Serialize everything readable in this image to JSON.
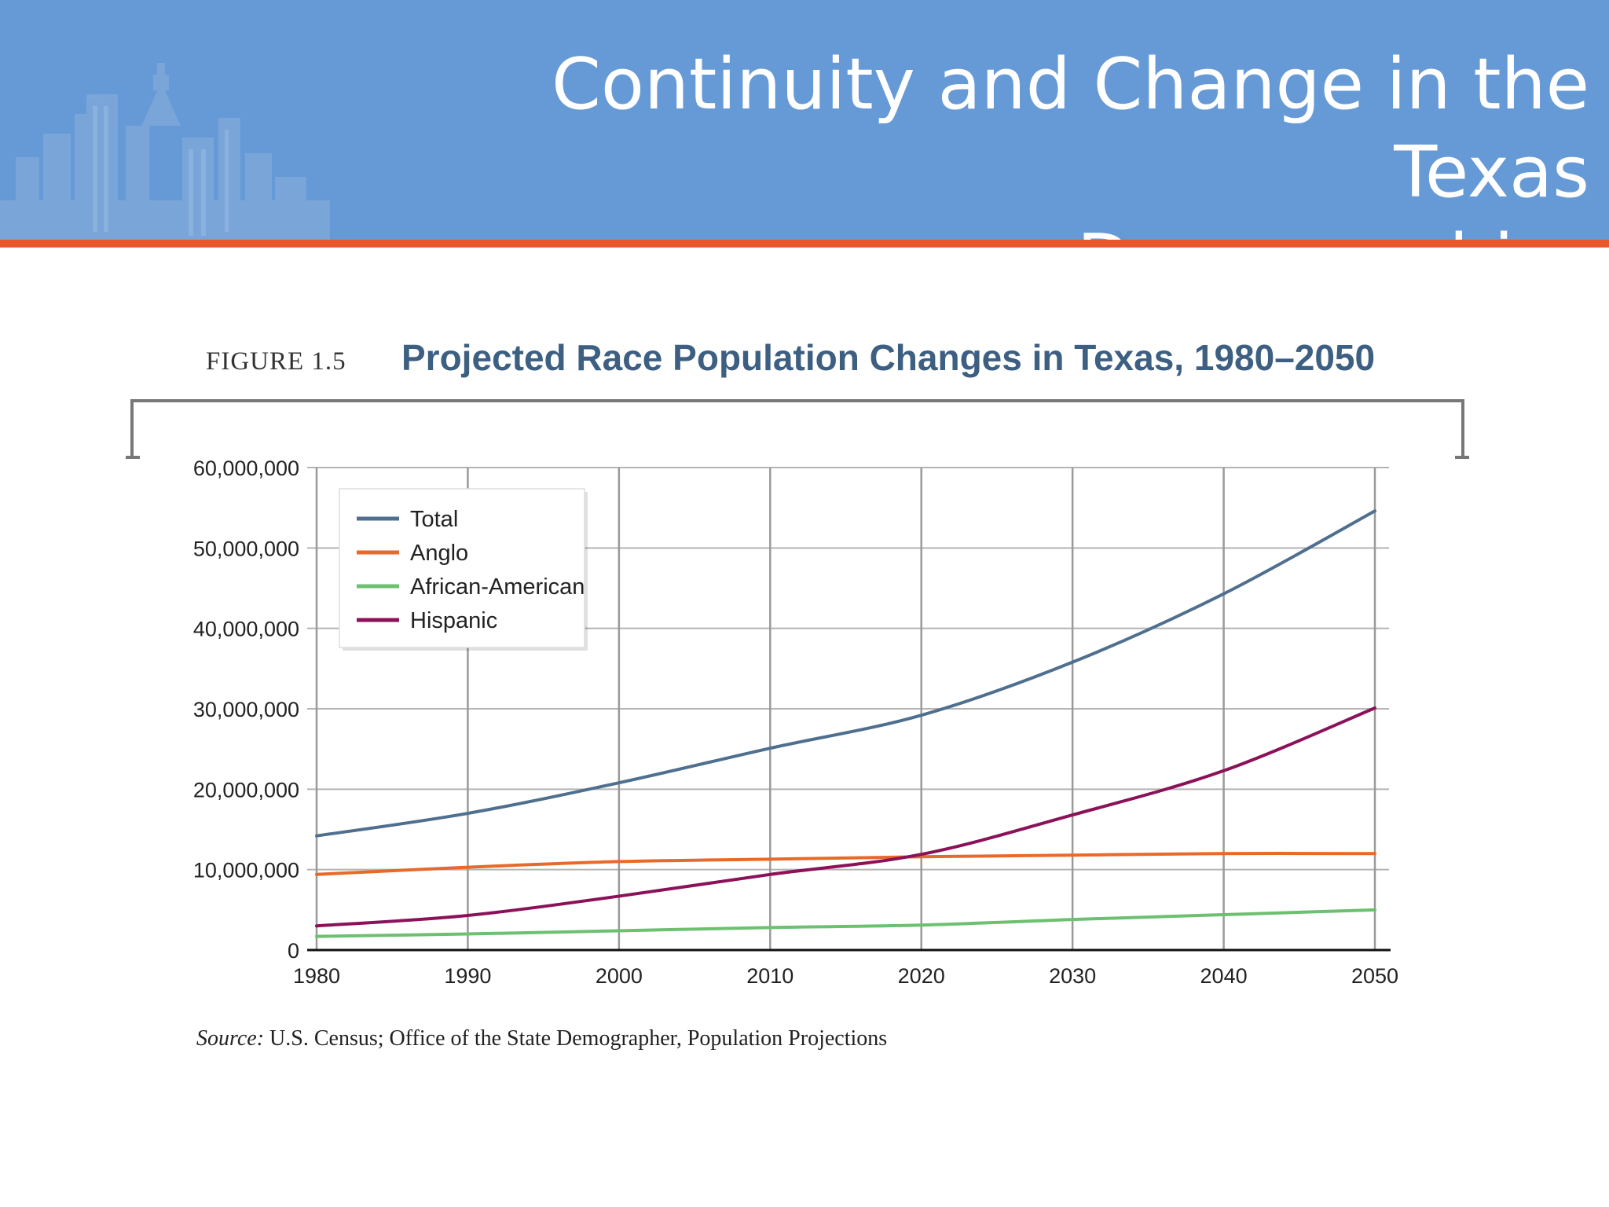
{
  "header": {
    "title": "Continuity and Change in the Texas\nDemographics",
    "background_color": "#669ad6",
    "accent_color": "#e8582a",
    "decoration_icon": "city-skyline-icon"
  },
  "figure": {
    "label": "FIGURE 1.5",
    "title": "Projected Race Population Changes in Texas, 1980–2050",
    "source_label": "Source:",
    "source_text": " U.S. Census; Office of the State Demographer, Population Projections"
  },
  "chart_data": {
    "type": "line",
    "title": "Projected Race Population Changes in Texas, 1980–2050",
    "xlabel": "",
    "ylabel": "",
    "x": [
      1980,
      1990,
      2000,
      2010,
      2020,
      2030,
      2040,
      2050
    ],
    "xlim": [
      1980,
      2050
    ],
    "ylim": [
      0,
      60000000
    ],
    "x_tick_labels": [
      "1980",
      "1990",
      "2000",
      "2010",
      "2020",
      "2030",
      "2040",
      "2050"
    ],
    "y_ticks": [
      0,
      10000000,
      20000000,
      30000000,
      40000000,
      50000000,
      60000000
    ],
    "y_tick_labels": [
      "0",
      "10,000,000",
      "20,000,000",
      "30,000,000",
      "40,000,000",
      "50,000,000",
      "60,000,000"
    ],
    "grid": true,
    "legend_position": "top-left",
    "series": [
      {
        "name": "Total",
        "color": "#4f6f8f",
        "values": [
          14200000,
          17000000,
          20800000,
          25100000,
          29200000,
          35800000,
          44300000,
          54600000
        ]
      },
      {
        "name": "Anglo",
        "color": "#e86a2a",
        "values": [
          9400000,
          10300000,
          11000000,
          11300000,
          11600000,
          11800000,
          12000000,
          12000000
        ]
      },
      {
        "name": "African-American",
        "color": "#6cc070",
        "values": [
          1700000,
          2000000,
          2400000,
          2800000,
          3100000,
          3800000,
          4400000,
          5000000
        ]
      },
      {
        "name": "Hispanic",
        "color": "#8b1258",
        "values": [
          3000000,
          4300000,
          6700000,
          9400000,
          11900000,
          16800000,
          22300000,
          30100000
        ]
      }
    ]
  }
}
